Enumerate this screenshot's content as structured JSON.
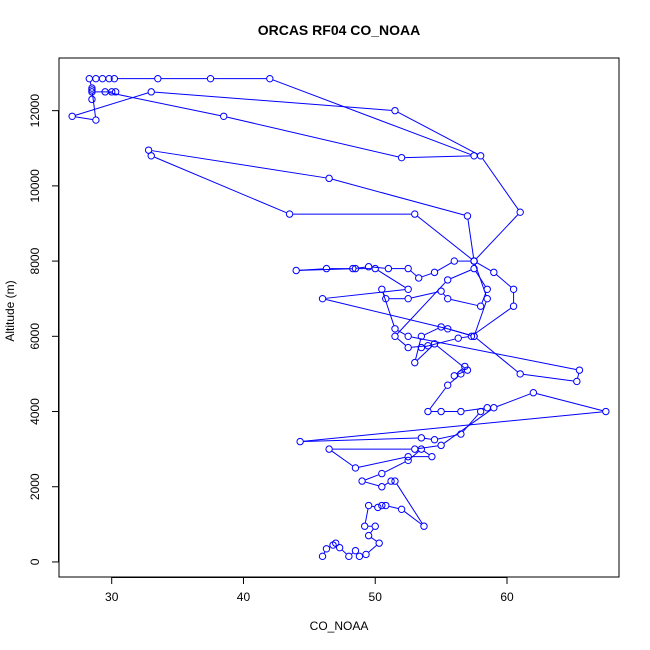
{
  "chart_data": {
    "type": "line",
    "title": "ORCAS RF04 CO_NOAA",
    "xlabel": "CO_NOAA",
    "ylabel": "Altitude (m)",
    "xlim": [
      26,
      68.5
    ],
    "ylim": [
      -400,
      13400
    ],
    "xticks": [
      30,
      40,
      50,
      60
    ],
    "yticks": [
      0,
      2000,
      4000,
      6000,
      8000,
      10000,
      12000
    ],
    "marker": "open-circle",
    "series": [
      {
        "color": "#0000ff",
        "points": [
          [
            46.0,
            150
          ],
          [
            46.3,
            350
          ],
          [
            46.8,
            450
          ],
          [
            47.0,
            500
          ],
          [
            47.3,
            380
          ],
          [
            48.0,
            150
          ],
          [
            48.5,
            300
          ],
          [
            48.8,
            150
          ],
          [
            49.3,
            200
          ],
          [
            50.3,
            500
          ],
          [
            49.5,
            700
          ],
          [
            50.0,
            950
          ],
          [
            49.2,
            950
          ],
          [
            49.5,
            1500
          ],
          [
            50.2,
            1450
          ],
          [
            50.5,
            1500
          ],
          [
            50.8,
            1500
          ],
          [
            52.0,
            1400
          ],
          [
            53.7,
            950
          ],
          [
            51.5,
            2150
          ],
          [
            51.2,
            2150
          ],
          [
            50.5,
            2000
          ],
          [
            49.0,
            2150
          ],
          [
            50.5,
            2350
          ],
          [
            52.5,
            2700
          ],
          [
            53.5,
            3000
          ],
          [
            54.3,
            2800
          ],
          [
            52.5,
            2800
          ],
          [
            48.5,
            2500
          ],
          [
            46.5,
            3000
          ],
          [
            53.0,
            3000
          ],
          [
            55.0,
            3100
          ],
          [
            59.0,
            4100
          ],
          [
            62.0,
            4500
          ],
          [
            67.5,
            4000
          ],
          [
            44.3,
            3200
          ],
          [
            53.5,
            3300
          ],
          [
            54.5,
            3250
          ],
          [
            56.5,
            3400
          ],
          [
            58.0,
            4000
          ],
          [
            58.5,
            4100
          ],
          [
            56.5,
            4000
          ],
          [
            55.0,
            4000
          ],
          [
            54.0,
            4000
          ],
          [
            55.5,
            4700
          ],
          [
            56.5,
            5000
          ],
          [
            56.8,
            5200
          ],
          [
            56.0,
            4950
          ],
          [
            57.0,
            5100
          ],
          [
            54.5,
            5800
          ],
          [
            53.0,
            5300
          ],
          [
            53.5,
            6000
          ],
          [
            55.0,
            6250
          ],
          [
            57.5,
            6000
          ],
          [
            61.0,
            5000
          ],
          [
            65.3,
            4800
          ],
          [
            65.5,
            5100
          ],
          [
            52.5,
            6000
          ],
          [
            51.5,
            6200
          ],
          [
            50.5,
            7250
          ],
          [
            50.8,
            7000
          ],
          [
            52.5,
            7000
          ],
          [
            55.0,
            7200
          ],
          [
            55.5,
            7000
          ],
          [
            58.0,
            6800
          ],
          [
            58.5,
            7250
          ],
          [
            57.5,
            7800
          ],
          [
            55.5,
            7500
          ],
          [
            51.5,
            6000
          ],
          [
            52.5,
            5700
          ],
          [
            54.0,
            5750
          ],
          [
            53.5,
            5700
          ],
          [
            56.3,
            5950
          ],
          [
            57.3,
            6000
          ],
          [
            60.5,
            6800
          ],
          [
            60.5,
            7250
          ],
          [
            59.0,
            7700
          ],
          [
            57.5,
            8000
          ],
          [
            56.0,
            8000
          ],
          [
            54.5,
            7700
          ],
          [
            53.3,
            7550
          ],
          [
            52.5,
            7800
          ],
          [
            51.0,
            7800
          ],
          [
            49.5,
            7850
          ],
          [
            48.3,
            7800
          ],
          [
            46.3,
            7800
          ],
          [
            44.0,
            7750
          ],
          [
            48.5,
            7800
          ],
          [
            50.0,
            7800
          ],
          [
            52.5,
            7250
          ],
          [
            46.0,
            7000
          ],
          [
            55.5,
            6200
          ],
          [
            57.5,
            6000
          ],
          [
            58.5,
            7000
          ],
          [
            57.5,
            8000
          ],
          [
            53.0,
            9250
          ],
          [
            43.5,
            9250
          ],
          [
            33.0,
            10800
          ],
          [
            32.8,
            10950
          ],
          [
            46.5,
            10200
          ],
          [
            57.0,
            9200
          ],
          [
            57.5,
            8000
          ],
          [
            61.0,
            9300
          ],
          [
            58.0,
            10800
          ],
          [
            51.5,
            12000
          ],
          [
            33.0,
            12500
          ],
          [
            27.0,
            11850
          ],
          [
            28.8,
            11750
          ],
          [
            28.5,
            12550
          ],
          [
            28.5,
            12600
          ],
          [
            28.3,
            12850
          ],
          [
            28.8,
            12850
          ],
          [
            29.3,
            12850
          ],
          [
            29.8,
            12850
          ],
          [
            30.2,
            12850
          ],
          [
            33.5,
            12850
          ],
          [
            37.5,
            12850
          ],
          [
            42.0,
            12850
          ],
          [
            57.5,
            10800
          ],
          [
            52.0,
            10750
          ],
          [
            38.5,
            11850
          ],
          [
            29.5,
            12500
          ],
          [
            30.0,
            12500
          ],
          [
            30.3,
            12500
          ],
          [
            28.5,
            12500
          ],
          [
            28.5,
            12300
          ]
        ]
      }
    ]
  }
}
